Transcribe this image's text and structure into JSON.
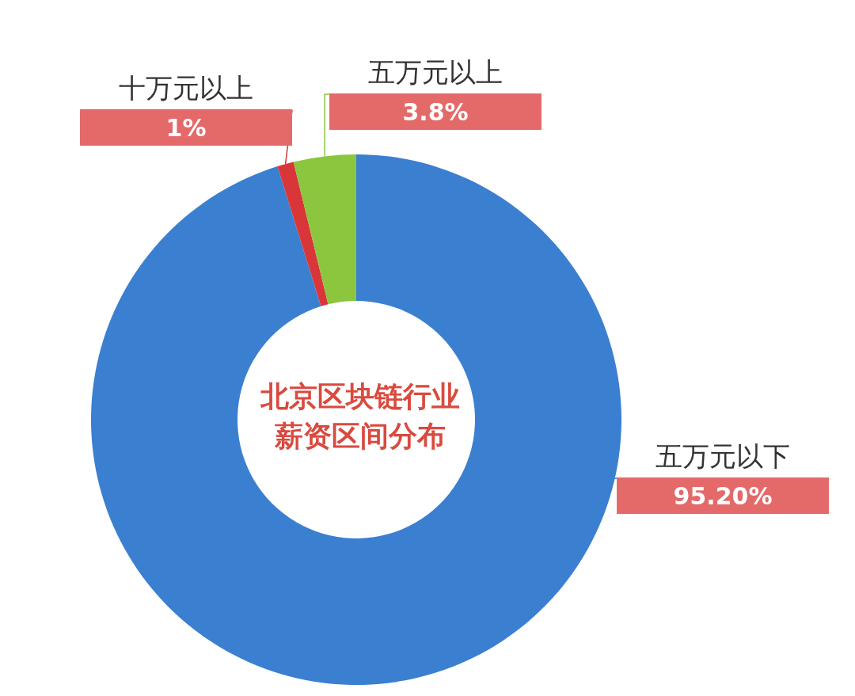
{
  "chart_data": {
    "type": "donut",
    "title": "北京区块链行业薪资区间分布",
    "categories": [
      "五万元以下",
      "十万元以上",
      "五万元以上"
    ],
    "values": [
      95.2,
      1,
      3.8
    ],
    "value_labels": [
      "95.20%",
      "1%",
      "3.8%"
    ],
    "colors": [
      "#3b7fd1",
      "#d9363a",
      "#8cc63f"
    ],
    "legend": false
  }
}
